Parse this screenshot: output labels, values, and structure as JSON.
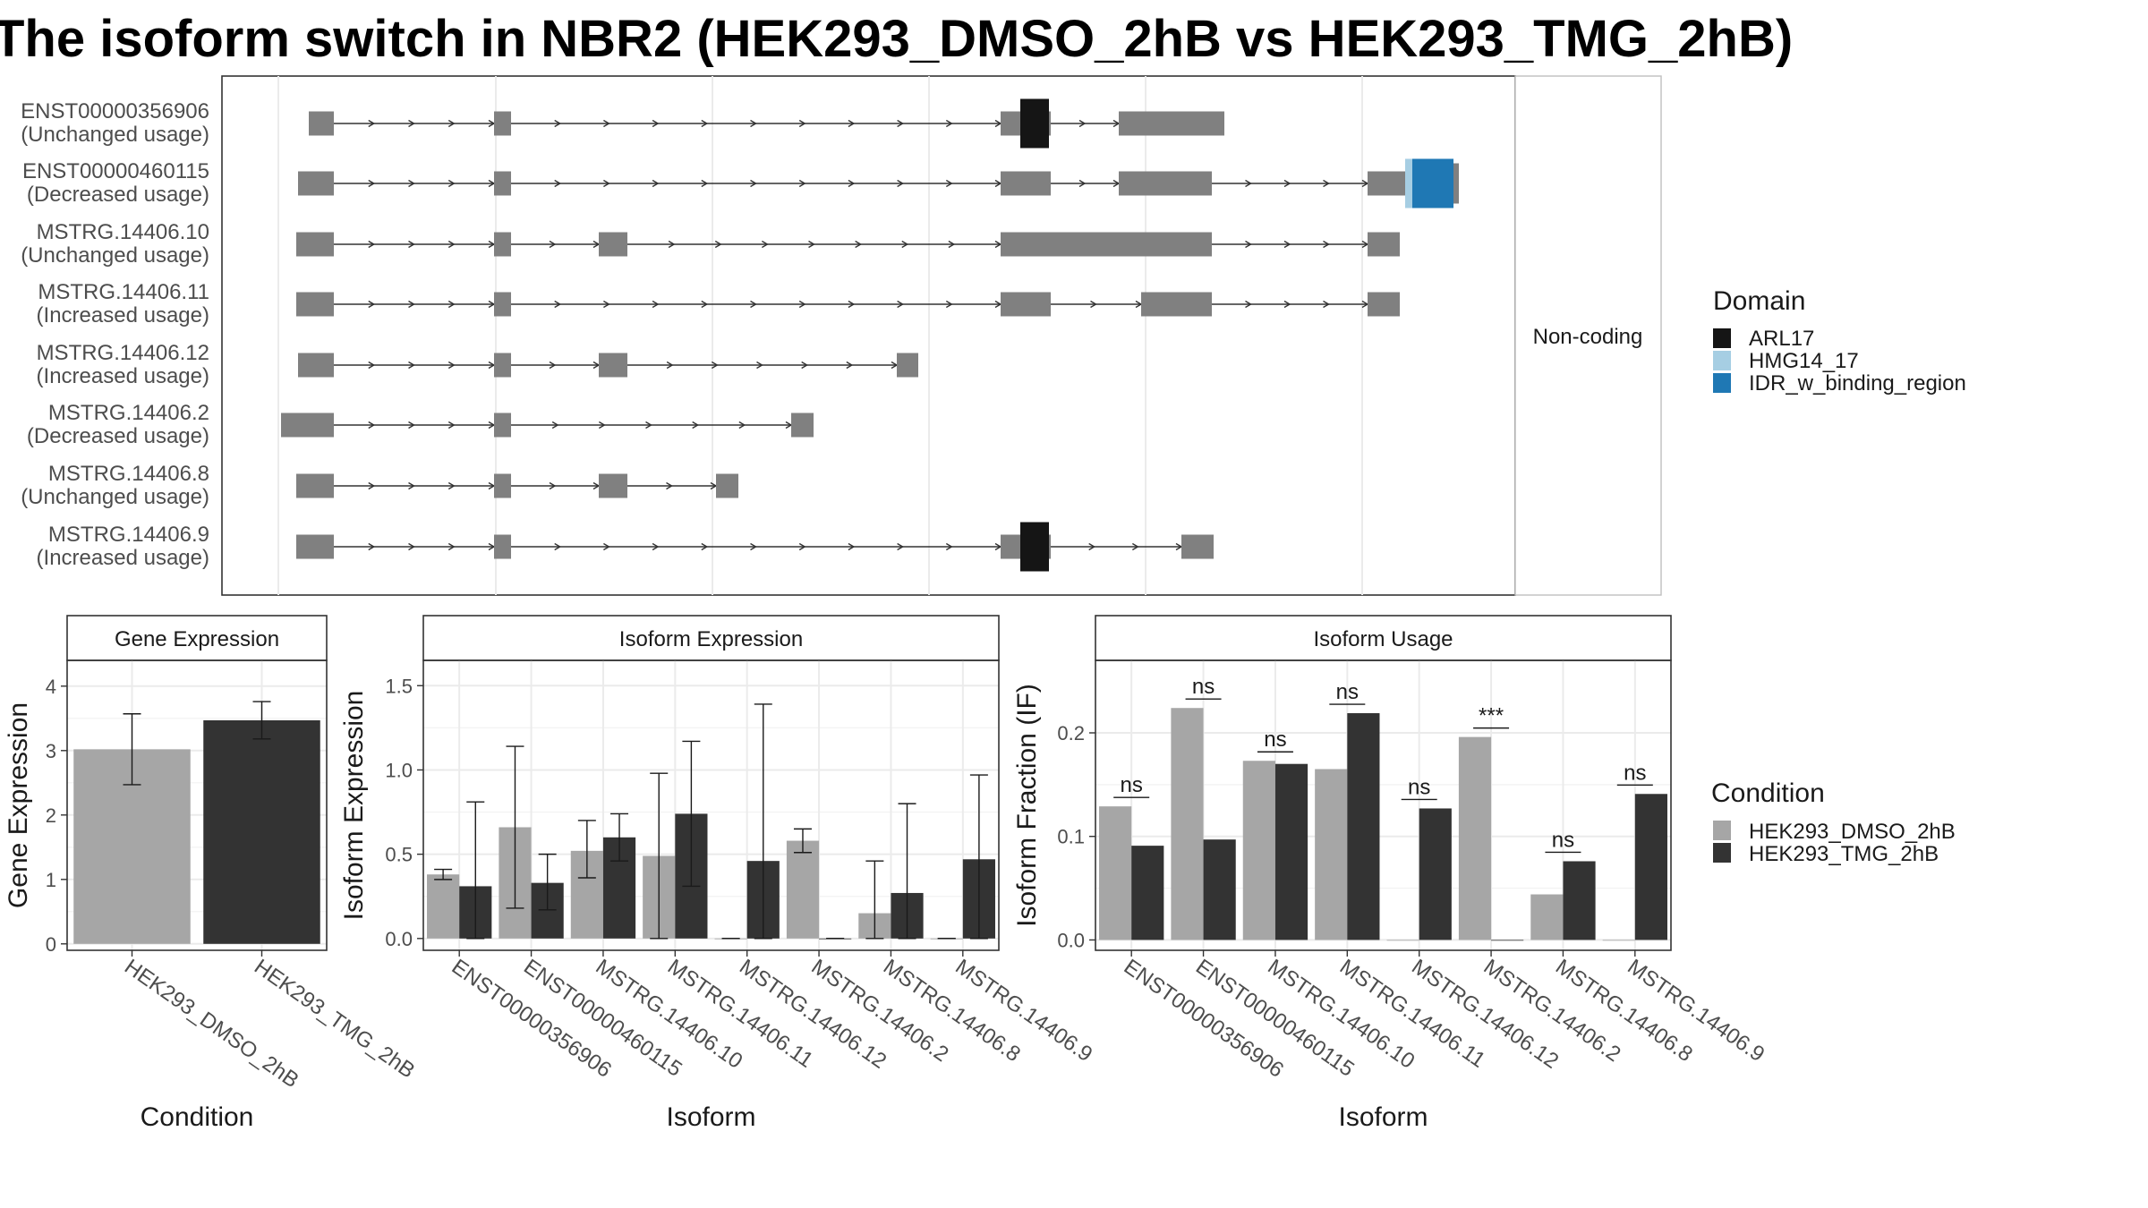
{
  "title": "The isoform switch in NBR2 (HEK293_DMSO_2hB vs HEK293_TMG_2hB)",
  "colors": {
    "dmso": "#a6a6a6",
    "tmg": "#333333",
    "exon": "#808080",
    "ARL17": "#151515",
    "HMG14_17": "#a6cee3",
    "IDR_w_binding_region": "#1f78b4",
    "grid": "#ebebeb"
  },
  "gene_model": {
    "strip_label": "Non-coding",
    "isoforms": [
      {
        "name": "ENST00000356906",
        "usage": "(Unchanged usage)"
      },
      {
        "name": "ENST00000460115",
        "usage": "(Decreased usage)"
      },
      {
        "name": "MSTRG.14406.10",
        "usage": "(Unchanged usage)"
      },
      {
        "name": "MSTRG.14406.11",
        "usage": "(Increased usage)"
      },
      {
        "name": "MSTRG.14406.12",
        "usage": "(Increased usage)"
      },
      {
        "name": "MSTRG.14406.2",
        "usage": "(Decreased usage)"
      },
      {
        "name": "MSTRG.14406.8",
        "usage": "(Unchanged usage)"
      },
      {
        "name": "MSTRG.14406.9",
        "usage": "(Increased usage)"
      }
    ]
  },
  "domain_legend": {
    "title": "Domain",
    "entries": [
      {
        "label": "ARL17",
        "color": "#151515"
      },
      {
        "label": "HMG14_17",
        "color": "#a6cee3"
      },
      {
        "label": "IDR_w_binding_region",
        "color": "#1f78b4"
      }
    ]
  },
  "condition_legend": {
    "title": "Condition",
    "entries": [
      {
        "label": "HEK293_DMSO_2hB",
        "color": "#a6a6a6"
      },
      {
        "label": "HEK293_TMG_2hB",
        "color": "#333333"
      }
    ]
  },
  "chart_data": [
    {
      "type": "bar",
      "title": "Gene Expression",
      "xlabel": "Condition",
      "ylabel": "Gene Expression",
      "categories": [
        "HEK293_DMSO_2hB",
        "HEK293_TMG_2hB"
      ],
      "values": [
        3.02,
        3.47
      ],
      "error": [
        [
          2.47,
          3.57
        ],
        [
          3.18,
          3.76
        ]
      ],
      "colors": [
        "#a6a6a6",
        "#333333"
      ],
      "ylim": [
        -0.1,
        4.4
      ],
      "yticks": [
        0,
        1,
        2,
        3,
        4
      ]
    },
    {
      "type": "bar",
      "title": "Isoform Expression",
      "xlabel": "Isoform",
      "ylabel": "Isoform Expression",
      "categories": [
        "ENST00000356906",
        "ENST00000460115",
        "MSTRG.14406.10",
        "MSTRG.14406.11",
        "MSTRG.14406.12",
        "MSTRG.14406.2",
        "MSTRG.14406.8",
        "MSTRG.14406.9"
      ],
      "series": [
        {
          "name": "HEK293_DMSO_2hB",
          "values": [
            0.38,
            0.66,
            0.52,
            0.49,
            0.0,
            0.58,
            0.15,
            0.0
          ],
          "error": [
            [
              0.35,
              0.41
            ],
            [
              0.18,
              1.14
            ],
            [
              0.36,
              0.7
            ],
            [
              0.0,
              0.98
            ],
            [
              0.0,
              0.0
            ],
            [
              0.51,
              0.65
            ],
            [
              0.0,
              0.46
            ],
            [
              0.0,
              0.0
            ]
          ]
        },
        {
          "name": "HEK293_TMG_2hB",
          "values": [
            0.31,
            0.33,
            0.6,
            0.74,
            0.46,
            0.0,
            0.27,
            0.47
          ],
          "error": [
            [
              0.0,
              0.81
            ],
            [
              0.17,
              0.5
            ],
            [
              0.46,
              0.74
            ],
            [
              0.31,
              1.17
            ],
            [
              0.0,
              1.39
            ],
            [
              0.0,
              0.0
            ],
            [
              0.0,
              0.8
            ],
            [
              0.0,
              0.97
            ]
          ]
        }
      ],
      "ylim": [
        -0.07,
        1.65
      ],
      "yticks": [
        0.0,
        0.5,
        1.0,
        1.5
      ]
    },
    {
      "type": "bar",
      "title": "Isoform Usage",
      "xlabel": "Isoform",
      "ylabel": "Isoform Fraction (IF)",
      "categories": [
        "ENST00000356906",
        "ENST00000460115",
        "MSTRG.14406.10",
        "MSTRG.14406.11",
        "MSTRG.14406.12",
        "MSTRG.14406.2",
        "MSTRG.14406.8",
        "MSTRG.14406.9"
      ],
      "series": [
        {
          "name": "HEK293_DMSO_2hB",
          "values": [
            0.129,
            0.224,
            0.173,
            0.165,
            0.0,
            0.196,
            0.044,
            0.0
          ]
        },
        {
          "name": "HEK293_TMG_2hB",
          "values": [
            0.091,
            0.097,
            0.17,
            0.219,
            0.127,
            0.0,
            0.076,
            0.141
          ]
        }
      ],
      "significance": [
        "ns",
        "ns",
        "ns",
        "ns",
        "ns",
        "***",
        "ns",
        "ns"
      ],
      "ylim": [
        -0.01,
        0.27
      ],
      "yticks": [
        0.0,
        0.1,
        0.2
      ]
    }
  ]
}
